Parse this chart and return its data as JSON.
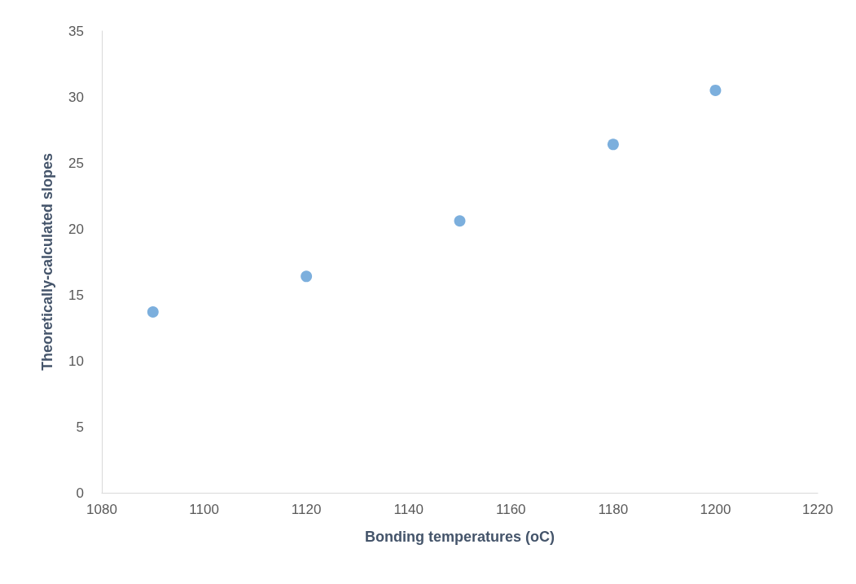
{
  "chart_data": {
    "type": "scatter",
    "xlabel": "Bonding temperatures (oC)",
    "ylabel": "Theoretically-calculated slopes",
    "x": [
      1090,
      1120,
      1150,
      1180,
      1200
    ],
    "values": [
      13.7,
      16.4,
      20.6,
      26.4,
      30.5
    ],
    "color": "#5b9bd5",
    "marker": "circle",
    "xlim": [
      1080,
      1220
    ],
    "xticks": [
      1080,
      1100,
      1120,
      1140,
      1160,
      1180,
      1200,
      1220
    ],
    "ylim": [
      0,
      35
    ],
    "yticks": [
      0,
      5,
      10,
      15,
      20,
      25,
      30,
      35
    ],
    "grid": false
  }
}
